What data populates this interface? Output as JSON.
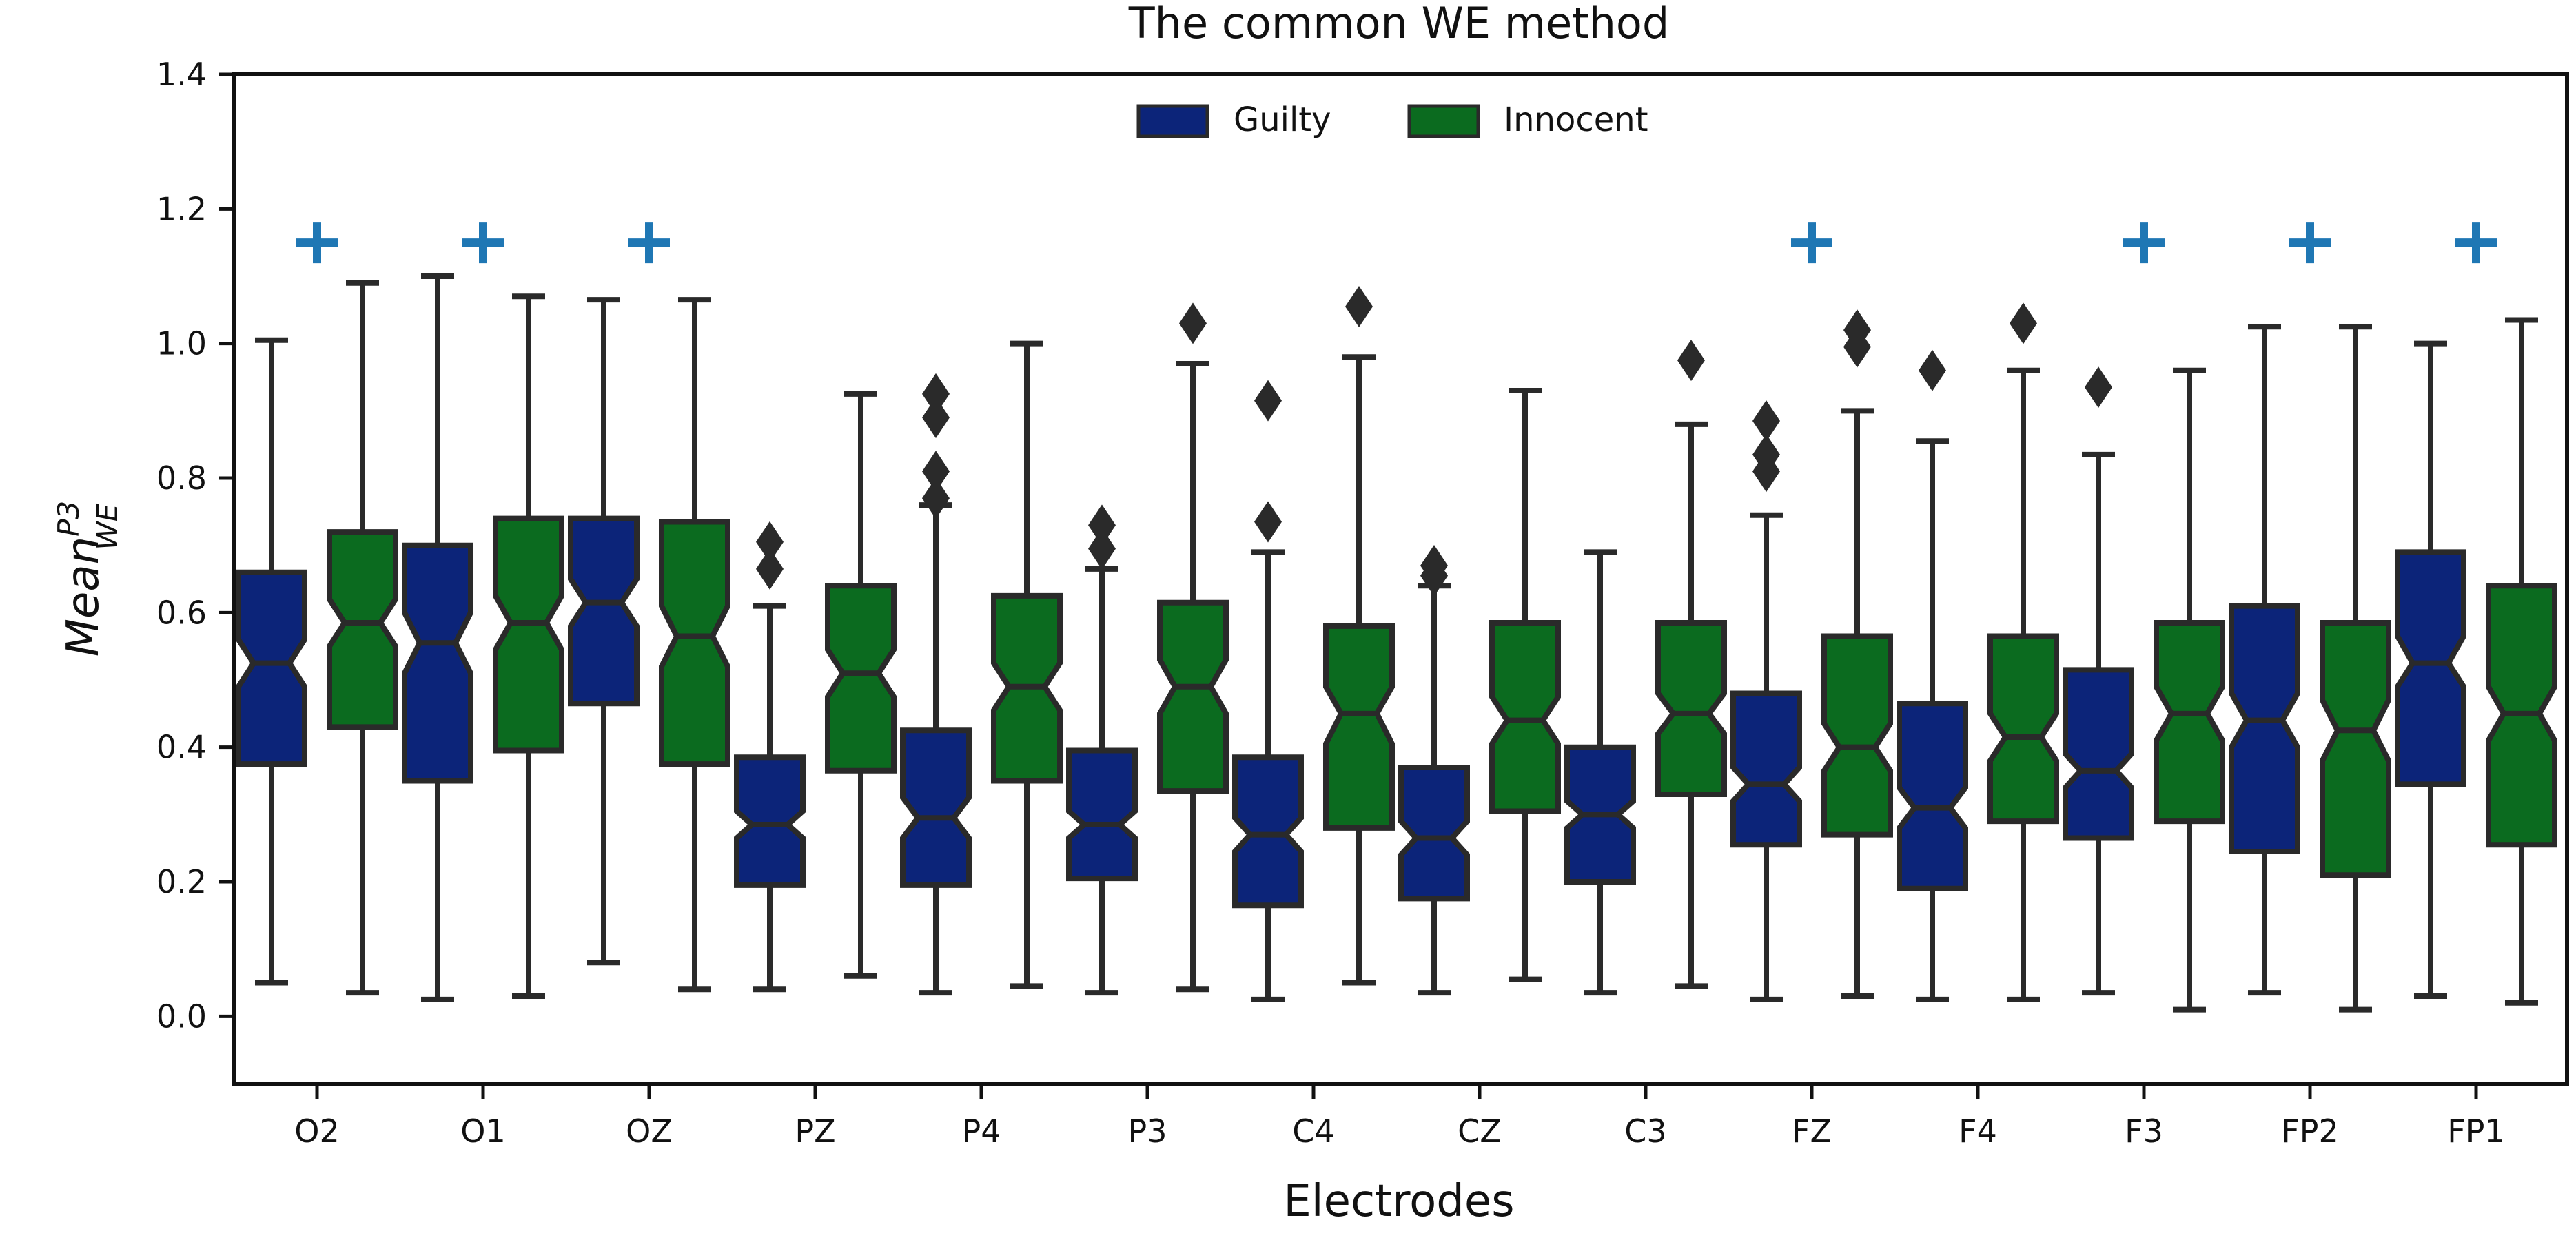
{
  "chart_data": {
    "type": "boxplot",
    "title": "The common WE method",
    "xlabel": "Electrodes",
    "ylabel": "Mean_WE^P3",
    "ylabel_parts": {
      "base": "Mean",
      "sup": "P3",
      "sub": "WE"
    },
    "ylim": [
      -0.1,
      1.4
    ],
    "yticks": [
      "0.0",
      "0.2",
      "0.4",
      "0.6",
      "0.8",
      "1.0",
      "1.2",
      "1.4"
    ],
    "ytick_values": [
      0.0,
      0.2,
      0.4,
      0.6,
      0.8,
      1.0,
      1.2,
      1.4
    ],
    "grid": false,
    "legend": {
      "placement": "upper-center",
      "entries": [
        "Guilty",
        "Innocent"
      ]
    },
    "notched": true,
    "categories": [
      "O2",
      "O1",
      "OZ",
      "PZ",
      "P4",
      "P3",
      "C4",
      "CZ",
      "C3",
      "FZ",
      "F4",
      "F3",
      "FP2",
      "FP1"
    ],
    "significance_marker": {
      "symbol": "+",
      "y": 1.15,
      "color": "#1f77b4",
      "categories": [
        "O2",
        "O1",
        "OZ",
        "FZ",
        "F3",
        "FP2",
        "FP1"
      ]
    },
    "series": [
      {
        "name": "Guilty",
        "color": "#0c2479",
        "boxes": [
          {
            "whislo": 0.05,
            "q1": 0.375,
            "med": 0.525,
            "q3": 0.66,
            "whishi": 1.005,
            "notch": [
              0.49,
              0.56
            ],
            "fliers": []
          },
          {
            "whislo": 0.025,
            "q1": 0.35,
            "med": 0.555,
            "q3": 0.7,
            "whishi": 1.1,
            "notch": [
              0.51,
              0.6
            ],
            "fliers": []
          },
          {
            "whislo": 0.08,
            "q1": 0.465,
            "med": 0.615,
            "q3": 0.74,
            "whishi": 1.065,
            "notch": [
              0.58,
              0.65
            ],
            "fliers": []
          },
          {
            "whislo": 0.04,
            "q1": 0.195,
            "med": 0.285,
            "q3": 0.385,
            "whishi": 0.61,
            "notch": [
              0.265,
              0.305
            ],
            "fliers": [
              0.665,
              0.705
            ]
          },
          {
            "whislo": 0.035,
            "q1": 0.195,
            "med": 0.295,
            "q3": 0.425,
            "whishi": 0.76,
            "notch": [
              0.265,
              0.325
            ],
            "fliers": [
              0.77,
              0.81,
              0.89,
              0.925
            ]
          },
          {
            "whislo": 0.035,
            "q1": 0.205,
            "med": 0.285,
            "q3": 0.395,
            "whishi": 0.665,
            "notch": [
              0.265,
              0.305
            ],
            "fliers": [
              0.695,
              0.73
            ]
          },
          {
            "whislo": 0.025,
            "q1": 0.165,
            "med": 0.27,
            "q3": 0.385,
            "whishi": 0.69,
            "notch": [
              0.245,
              0.295
            ],
            "fliers": [
              0.735,
              0.915
            ]
          },
          {
            "whislo": 0.035,
            "q1": 0.175,
            "med": 0.265,
            "q3": 0.37,
            "whishi": 0.64,
            "notch": [
              0.24,
              0.29
            ],
            "fliers": [
              0.655,
              0.67
            ]
          },
          {
            "whislo": 0.035,
            "q1": 0.2,
            "med": 0.3,
            "q3": 0.4,
            "whishi": 0.69,
            "notch": [
              0.28,
              0.32
            ],
            "fliers": []
          },
          {
            "whislo": 0.025,
            "q1": 0.255,
            "med": 0.345,
            "q3": 0.48,
            "whishi": 0.745,
            "notch": [
              0.32,
              0.37
            ],
            "fliers": [
              0.81,
              0.835,
              0.885
            ]
          },
          {
            "whislo": 0.025,
            "q1": 0.19,
            "med": 0.31,
            "q3": 0.465,
            "whishi": 0.855,
            "notch": [
              0.28,
              0.34
            ],
            "fliers": [
              0.96
            ]
          },
          {
            "whislo": 0.035,
            "q1": 0.265,
            "med": 0.365,
            "q3": 0.515,
            "whishi": 0.835,
            "notch": [
              0.34,
              0.39
            ],
            "fliers": [
              0.935
            ]
          },
          {
            "whislo": 0.035,
            "q1": 0.245,
            "med": 0.44,
            "q3": 0.61,
            "whishi": 1.025,
            "notch": [
              0.4,
              0.48
            ],
            "fliers": []
          },
          {
            "whislo": 0.03,
            "q1": 0.345,
            "med": 0.525,
            "q3": 0.69,
            "whishi": 1.0,
            "notch": [
              0.49,
              0.565
            ],
            "fliers": []
          }
        ]
      },
      {
        "name": "Innocent",
        "color": "#0b6b1f",
        "boxes": [
          {
            "whislo": 0.035,
            "q1": 0.43,
            "med": 0.585,
            "q3": 0.72,
            "whishi": 1.09,
            "notch": [
              0.55,
              0.62
            ],
            "fliers": []
          },
          {
            "whislo": 0.03,
            "q1": 0.395,
            "med": 0.585,
            "q3": 0.74,
            "whishi": 1.07,
            "notch": [
              0.545,
              0.625
            ],
            "fliers": []
          },
          {
            "whislo": 0.04,
            "q1": 0.375,
            "med": 0.565,
            "q3": 0.735,
            "whishi": 1.065,
            "notch": [
              0.52,
              0.61
            ],
            "fliers": []
          },
          {
            "whislo": 0.06,
            "q1": 0.365,
            "med": 0.51,
            "q3": 0.64,
            "whishi": 0.925,
            "notch": [
              0.475,
              0.545
            ],
            "fliers": []
          },
          {
            "whislo": 0.045,
            "q1": 0.35,
            "med": 0.49,
            "q3": 0.625,
            "whishi": 1.0,
            "notch": [
              0.455,
              0.525
            ],
            "fliers": []
          },
          {
            "whislo": 0.04,
            "q1": 0.335,
            "med": 0.49,
            "q3": 0.615,
            "whishi": 0.97,
            "notch": [
              0.45,
              0.53
            ],
            "fliers": [
              1.03
            ]
          },
          {
            "whislo": 0.05,
            "q1": 0.28,
            "med": 0.45,
            "q3": 0.58,
            "whishi": 0.98,
            "notch": [
              0.405,
              0.49
            ],
            "fliers": [
              1.055
            ]
          },
          {
            "whislo": 0.055,
            "q1": 0.305,
            "med": 0.44,
            "q3": 0.585,
            "whishi": 0.93,
            "notch": [
              0.405,
              0.475
            ],
            "fliers": []
          },
          {
            "whislo": 0.045,
            "q1": 0.33,
            "med": 0.45,
            "q3": 0.585,
            "whishi": 0.88,
            "notch": [
              0.42,
              0.48
            ],
            "fliers": [
              0.975
            ]
          },
          {
            "whislo": 0.03,
            "q1": 0.27,
            "med": 0.4,
            "q3": 0.565,
            "whishi": 0.9,
            "notch": [
              0.365,
              0.435
            ],
            "fliers": [
              0.995,
              1.02
            ]
          },
          {
            "whislo": 0.025,
            "q1": 0.29,
            "med": 0.415,
            "q3": 0.565,
            "whishi": 0.96,
            "notch": [
              0.38,
              0.45
            ],
            "fliers": [
              1.03
            ]
          },
          {
            "whislo": 0.01,
            "q1": 0.29,
            "med": 0.45,
            "q3": 0.585,
            "whishi": 0.96,
            "notch": [
              0.41,
              0.49
            ],
            "fliers": []
          },
          {
            "whislo": 0.01,
            "q1": 0.21,
            "med": 0.425,
            "q3": 0.585,
            "whishi": 1.025,
            "notch": [
              0.38,
              0.47
            ],
            "fliers": []
          },
          {
            "whislo": 0.02,
            "q1": 0.255,
            "med": 0.45,
            "q3": 0.64,
            "whishi": 1.035,
            "notch": [
              0.41,
              0.49
            ],
            "fliers": []
          }
        ]
      }
    ]
  }
}
